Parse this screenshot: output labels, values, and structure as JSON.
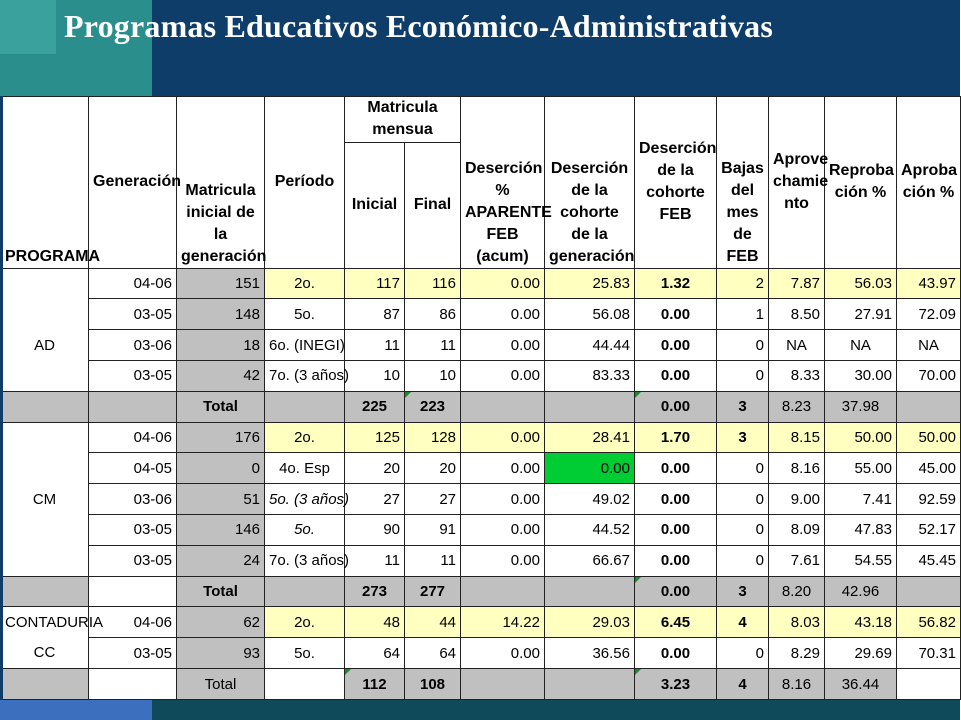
{
  "title": "Programas Educativos Económico-Administrativas",
  "headers": {
    "programa": "PROGRAMA",
    "generacion": "Generación",
    "matricula_inicial": "Matricula inicial de la generación",
    "periodo": "Período",
    "matricula_mensual": "Matricula mensua",
    "inicial": "Inicial",
    "final": "Final",
    "desercion_aparente": "Deserción % APARENTE FEB (acum)",
    "desercion_cohorte_gen": "Deserción de la cohorte de la generación",
    "desercion_cohorte_feb": "Deserción de la cohorte FEB",
    "bajas": "Bajas del mes de FEB",
    "aprovechamiento": "Aprove chamie nto",
    "reprobacion": "Reproba ción %",
    "aprobacion": "Aproba ción %"
  },
  "groups": [
    {
      "programa": "AD",
      "rows": [
        {
          "gen": "04-06",
          "mat": "151",
          "per": "2o.",
          "ini": "117",
          "fin": "116",
          "dap": "0.00",
          "dcg": "25.83",
          "dcf": "1.32",
          "baj": "2",
          "apv": "7.87",
          "rep": "56.03",
          "apr": "43.97"
        },
        {
          "gen": "03-05",
          "mat": "148",
          "per": "5o.",
          "ini": "87",
          "fin": "86",
          "dap": "0.00",
          "dcg": "56.08",
          "dcf": "0.00",
          "baj": "1",
          "apv": "8.50",
          "rep": "27.91",
          "apr": "72.09"
        },
        {
          "gen": "03-06",
          "mat": "18",
          "per": "6o. (INEGI)",
          "ini": "11",
          "fin": "11",
          "dap": "0.00",
          "dcg": "44.44",
          "dcf": "0.00",
          "baj": "0",
          "apv": "NA",
          "rep": "NA",
          "apr": "NA"
        },
        {
          "gen": "03-05",
          "mat": "42",
          "per": "7o. (3 años)",
          "ini": "10",
          "fin": "10",
          "dap": "0.00",
          "dcg": "83.33",
          "dcf": "0.00",
          "baj": "0",
          "apv": "8.33",
          "rep": "30.00",
          "apr": "70.00"
        }
      ],
      "total": {
        "label": "Total",
        "ini": "225",
        "fin": "223",
        "dcf": "0.00",
        "baj": "3",
        "apv": "8.23",
        "rep": "37.98"
      }
    },
    {
      "programa": "CM",
      "rows": [
        {
          "gen": "04-06",
          "mat": "176",
          "per": "2o.",
          "ini": "125",
          "fin": "128",
          "dap": "0.00",
          "dcg": "28.41",
          "dcf": "1.70",
          "baj": "3",
          "apv": "8.15",
          "rep": "50.00",
          "apr": "50.00"
        },
        {
          "gen": "04-05",
          "mat": "0",
          "per": "4o. Esp",
          "ini": "20",
          "fin": "20",
          "dap": "0.00",
          "dcg": "0.00",
          "dcf": "0.00",
          "baj": "0",
          "apv": "8.16",
          "rep": "55.00",
          "apr": "45.00"
        },
        {
          "gen": "03-06",
          "mat": "51",
          "per": "5o. (3 años)",
          "ini": "27",
          "fin": "27",
          "dap": "0.00",
          "dcg": "49.02",
          "dcf": "0.00",
          "baj": "0",
          "apv": "9.00",
          "rep": "7.41",
          "apr": "92.59"
        },
        {
          "gen": "03-05",
          "mat": "146",
          "per": "5o.",
          "ini": "90",
          "fin": "91",
          "dap": "0.00",
          "dcg": "44.52",
          "dcf": "0.00",
          "baj": "0",
          "apv": "8.09",
          "rep": "47.83",
          "apr": "52.17"
        },
        {
          "gen": "03-05",
          "mat": "24",
          "per": "7o. (3 años)",
          "ini": "11",
          "fin": "11",
          "dap": "0.00",
          "dcg": "66.67",
          "dcf": "0.00",
          "baj": "0",
          "apv": "7.61",
          "rep": "54.55",
          "apr": "45.45"
        }
      ],
      "total": {
        "label": "Total",
        "ini": "273",
        "fin": "277",
        "dcf": "0.00",
        "baj": "3",
        "apv": "8.20",
        "rep": "42.96"
      }
    },
    {
      "programa_a": "CONTADURIA",
      "programa_b": "CC",
      "rows": [
        {
          "gen": "04-06",
          "mat": "62",
          "per": "2o.",
          "ini": "48",
          "fin": "44",
          "dap": "14.22",
          "dcg": "29.03",
          "dcf": "6.45",
          "baj": "4",
          "apv": "8.03",
          "rep": "43.18",
          "apr": "56.82"
        },
        {
          "gen": "03-05",
          "mat": "93",
          "per": "5o.",
          "ini": "64",
          "fin": "64",
          "dap": "0.00",
          "dcg": "36.56",
          "dcf": "0.00",
          "baj": "0",
          "apv": "8.29",
          "rep": "29.69",
          "apr": "70.31"
        }
      ],
      "total": {
        "label": "Total",
        "ini": "112",
        "fin": "108",
        "dcf": "3.23",
        "baj": "4",
        "apv": "8.16",
        "rep": "36.44"
      }
    }
  ],
  "colors": {
    "header_blue": "#0f3d6a",
    "header_teal": "#2a8f8c",
    "gray": "#c0c0c0",
    "yellow": "#ffffc0",
    "green": "#00cc33"
  }
}
